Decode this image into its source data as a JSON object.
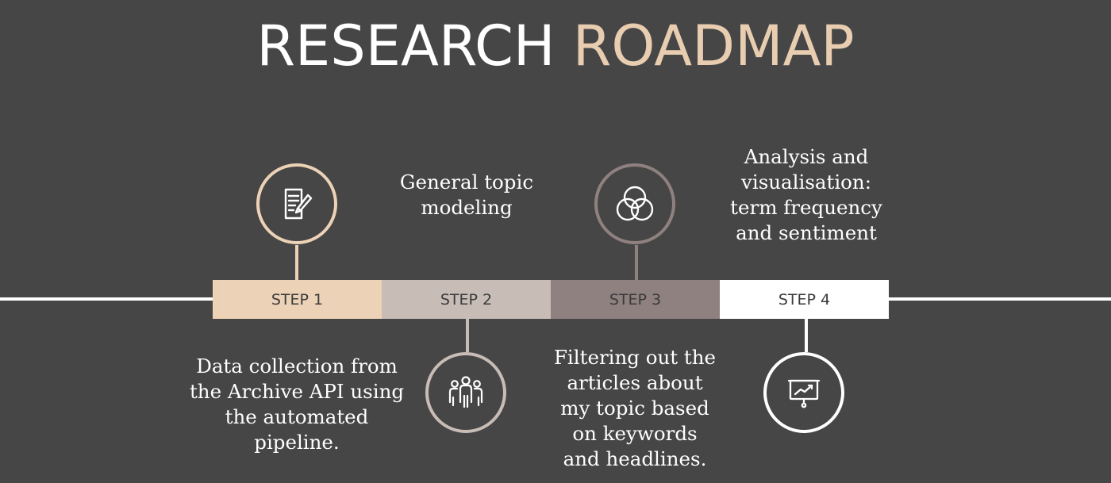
{
  "title": {
    "word1": "RESEARCH",
    "word2": "ROADMAP"
  },
  "colors": {
    "background": "#474646",
    "step1": "#ecd2b6",
    "step2": "#c8bcb6",
    "step3": "#8e8180",
    "step4": "#ffffff",
    "title_accent": "#e8cdb0"
  },
  "steps": [
    {
      "label": "STEP 1",
      "icon": "document-edit-icon",
      "description": "Data collection from\nthe Archive API using\nthe automated\npipeline."
    },
    {
      "label": "STEP 2",
      "icon": "people-group-icon",
      "description": "General topic\nmodeling"
    },
    {
      "label": "STEP 3",
      "icon": "overlapping-circles-icon",
      "description": "Filtering out the\narticles about\nmy topic based\non keywords\nand headlines."
    },
    {
      "label": "STEP 4",
      "icon": "presentation-chart-icon",
      "description": "Analysis and\nvisualisation:\nterm frequency\nand sentiment"
    }
  ]
}
